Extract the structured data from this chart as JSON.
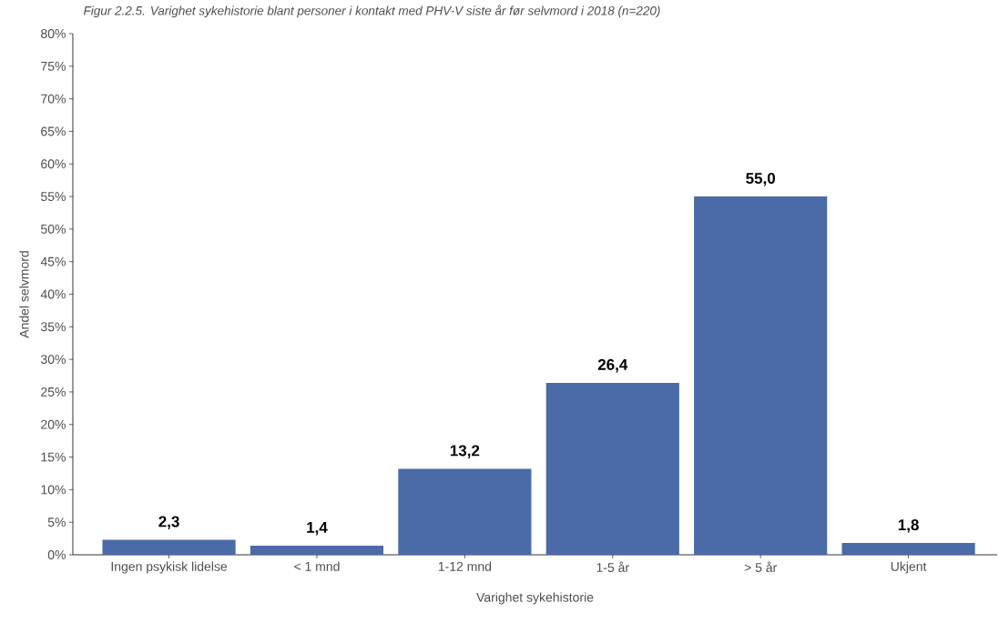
{
  "chart_data": {
    "type": "bar",
    "title": "Figur 2.2.5. Varighet sykehistorie blant personer i kontakt med PHV-V siste år før selvmord i 2018 (n=220)",
    "xlabel": "Varighet sykehistorie",
    "ylabel": "Andel selvmord",
    "categories": [
      "Ingen psykisk lidelse",
      "< 1 mnd",
      "1-12 mnd",
      "1-5 år",
      "> 5 år",
      "Ukjent"
    ],
    "values": [
      2.3,
      1.4,
      13.2,
      26.4,
      55.0,
      1.8
    ],
    "value_labels": [
      "2,3",
      "1,4",
      "13,2",
      "26,4",
      "55,0",
      "1,8"
    ],
    "color": "#4a6aa8",
    "ylim": [
      0,
      80
    ],
    "yticks": [
      {
        "value": 0,
        "label": "0%"
      },
      {
        "value": 5,
        "label": "5%"
      },
      {
        "value": 10,
        "label": "10%"
      },
      {
        "value": 15,
        "label": "15%"
      },
      {
        "value": 20,
        "label": "20%"
      },
      {
        "value": 25,
        "label": "25%"
      },
      {
        "value": 30,
        "label": "30%"
      },
      {
        "value": 35,
        "label": "35%"
      },
      {
        "value": 40,
        "label": "40%"
      },
      {
        "value": 45,
        "label": "45%"
      },
      {
        "value": 50,
        "label": "50%"
      },
      {
        "value": 55,
        "label": "55%"
      },
      {
        "value": 60,
        "label": "60%"
      },
      {
        "value": 65,
        "label": "65%"
      },
      {
        "value": 70,
        "label": "70%"
      },
      {
        "value": 75,
        "label": "75%"
      },
      {
        "value": 80,
        "label": "80%"
      }
    ],
    "grid": false
  }
}
